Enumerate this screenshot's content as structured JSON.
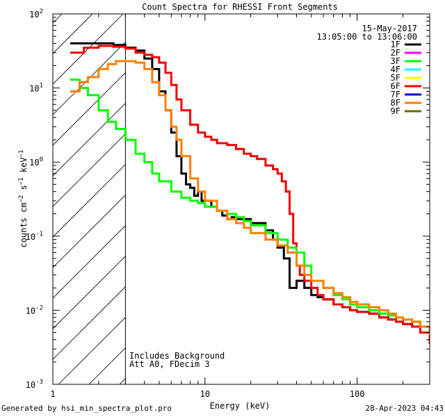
{
  "chart_data": {
    "type": "line",
    "title": "Count Spectra for RHESSI Front Segments",
    "xlabel": "Energy (keV)",
    "ylabel": "counts cm^-2 s^-1 keV^-1",
    "ylabel_parts": {
      "base": "counts cm",
      "exp1": "−2",
      "mid": " s",
      "exp2": "−1",
      "mid2": " keV",
      "exp3": "−1"
    },
    "x_scale": "log",
    "y_scale": "log",
    "xlim": [
      1,
      300
    ],
    "ylim": [
      0.001,
      100
    ],
    "x_ticks": [
      {
        "value": 1,
        "label": "1"
      },
      {
        "value": 10,
        "label": "10"
      },
      {
        "value": 100,
        "label": "100"
      }
    ],
    "y_ticks": [
      {
        "value": 0.001,
        "base": "10",
        "exp": "-3"
      },
      {
        "value": 0.01,
        "base": "10",
        "exp": "-2"
      },
      {
        "value": 0.1,
        "base": "10",
        "exp": "-1"
      },
      {
        "value": 1,
        "base": "10",
        "exp": "0"
      },
      {
        "value": 10,
        "base": "10",
        "exp": "1"
      },
      {
        "value": 100,
        "base": "10",
        "exp": "2"
      }
    ],
    "excluded_region": {
      "x_max": 3.0,
      "style": "hatched"
    },
    "date": "15-May-2017",
    "time_range": "13:05:00 to 13:06:00",
    "notes": [
      "Includes Background",
      "Att A0, FDecim 3"
    ],
    "legend_position": "top-right",
    "legend": [
      {
        "name": "1F",
        "color": "#000000"
      },
      {
        "name": "2F",
        "color": "#ff00ff"
      },
      {
        "name": "3F",
        "color": "#00ff00"
      },
      {
        "name": "4F",
        "color": "#00ffff"
      },
      {
        "name": "5F",
        "color": "#ffff00"
      },
      {
        "name": "6F",
        "color": "#ee0000"
      },
      {
        "name": "7F",
        "color": "#0000cc"
      },
      {
        "name": "8F",
        "color": "#ff8000"
      },
      {
        "name": "9F",
        "color": "#6b6b00"
      }
    ],
    "series": [
      {
        "name": "1F",
        "color": "#000000",
        "x": [
          1.3,
          1.6,
          2.0,
          2.5,
          3.0,
          3.5,
          4.0,
          4.5,
          5.0,
          5.5,
          6.0,
          6.5,
          7.0,
          7.5,
          8.0,
          8.5,
          9.0,
          9.5,
          10,
          11,
          12,
          13,
          14,
          15,
          16,
          18,
          20,
          22,
          25,
          28,
          30,
          33,
          36,
          38,
          40,
          45,
          50,
          55,
          60,
          70,
          80,
          90,
          100,
          120,
          140,
          160,
          180,
          200,
          230,
          260,
          300
        ],
        "y": [
          40,
          40,
          40,
          38,
          35,
          32,
          25,
          18,
          9,
          5,
          2.5,
          1.2,
          0.7,
          0.5,
          0.45,
          0.35,
          0.4,
          0.3,
          0.3,
          0.25,
          0.22,
          0.19,
          0.17,
          0.18,
          0.17,
          0.17,
          0.15,
          0.15,
          0.12,
          0.09,
          0.07,
          0.05,
          0.02,
          0.02,
          0.025,
          0.02,
          0.016,
          0.015,
          0.014,
          0.012,
          0.011,
          0.01,
          0.0095,
          0.009,
          0.008,
          0.0075,
          0.007,
          0.0065,
          0.006,
          0.005,
          0.004
        ]
      },
      {
        "name": "6F",
        "color": "#ee0000",
        "x": [
          1.3,
          1.6,
          2.0,
          2.5,
          3.0,
          3.5,
          4.0,
          4.5,
          5.0,
          5.5,
          6.0,
          6.5,
          7.0,
          8.0,
          9.0,
          10,
          11,
          12,
          14,
          16,
          18,
          20,
          22,
          25,
          28,
          30,
          32,
          34,
          36,
          38,
          40,
          42,
          45,
          50,
          55,
          60,
          70,
          80,
          90,
          100,
          120,
          140,
          160,
          180,
          200,
          230,
          260,
          300
        ],
        "y": [
          30,
          35,
          37,
          36,
          34,
          30,
          28,
          26,
          22,
          16,
          11,
          7,
          5,
          3.2,
          2.5,
          2.2,
          2.0,
          1.8,
          1.7,
          1.5,
          1.3,
          1.2,
          1.1,
          0.9,
          0.8,
          0.7,
          0.55,
          0.4,
          0.2,
          0.08,
          0.04,
          0.03,
          0.025,
          0.02,
          0.016,
          0.014,
          0.012,
          0.011,
          0.01,
          0.0095,
          0.009,
          0.008,
          0.0075,
          0.007,
          0.0065,
          0.006,
          0.005,
          0.0035
        ]
      },
      {
        "name": "3F",
        "color": "#00ff00",
        "x": [
          1.3,
          1.5,
          1.7,
          2.0,
          2.3,
          2.6,
          3.0,
          3.5,
          4.0,
          4.5,
          5.0,
          6.0,
          7.0,
          8.0,
          9.0,
          10,
          12,
          14,
          16,
          18,
          20,
          25,
          30,
          35,
          40,
          45,
          50,
          60,
          70,
          80,
          90,
          100,
          120,
          140,
          160,
          180,
          200,
          230,
          260,
          300
        ],
        "y": [
          13,
          10,
          8,
          5,
          3.5,
          2.8,
          2.0,
          1.3,
          1.0,
          0.7,
          0.55,
          0.4,
          0.33,
          0.3,
          0.28,
          0.25,
          0.22,
          0.2,
          0.18,
          0.16,
          0.14,
          0.11,
          0.09,
          0.07,
          0.06,
          0.04,
          0.025,
          0.02,
          0.016,
          0.014,
          0.012,
          0.011,
          0.01,
          0.009,
          0.0085,
          0.008,
          0.0075,
          0.007,
          0.006,
          0.005
        ]
      },
      {
        "name": "8F",
        "color": "#ff8000",
        "x": [
          1.3,
          1.5,
          1.7,
          2.0,
          2.3,
          2.6,
          3.0,
          3.5,
          4.0,
          4.5,
          5.0,
          5.5,
          6.0,
          6.5,
          7.0,
          8.0,
          9.0,
          10,
          12,
          14,
          16,
          18,
          20,
          25,
          30,
          35,
          40,
          45,
          50,
          60,
          70,
          80,
          90,
          100,
          120,
          140,
          160,
          180,
          200,
          230,
          260,
          300
        ],
        "y": [
          9,
          12,
          14,
          18,
          21,
          23,
          23,
          22,
          18,
          12,
          8,
          5,
          3,
          2,
          1.2,
          0.6,
          0.4,
          0.3,
          0.22,
          0.17,
          0.15,
          0.13,
          0.11,
          0.09,
          0.075,
          0.06,
          0.04,
          0.03,
          0.025,
          0.02,
          0.017,
          0.015,
          0.013,
          0.012,
          0.011,
          0.01,
          0.009,
          0.008,
          0.0075,
          0.007,
          0.006,
          0.0045
        ]
      }
    ]
  },
  "footer": {
    "left": "Generated by hsi_min_spectra_plot.pro",
    "right": "28-Apr-2023 04:43"
  }
}
